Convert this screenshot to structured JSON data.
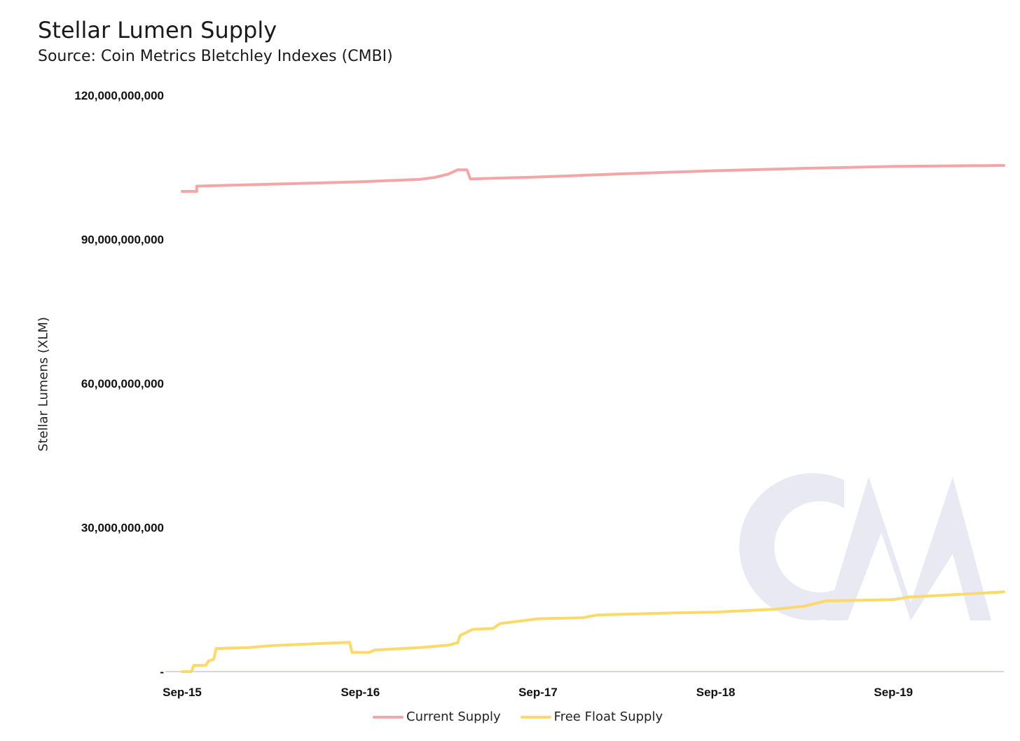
{
  "colors": {
    "current_supply": "#f4a6a6",
    "free_float_supply": "#fbd96a",
    "axis": "#c9c9dc",
    "watermark": "#e8e9f3"
  },
  "watermark": {
    "text": "CM"
  },
  "chart_data": {
    "type": "line",
    "title": "Stellar Lumen Supply",
    "subtitle": "Source: Coin Metrics Bletchley Indexes (CMBI)",
    "xlabel": "",
    "ylabel": "Stellar Lumens (XLM)",
    "ylim": [
      0,
      120000000000
    ],
    "xlim": [
      "2015-09-01",
      "2020-04-15"
    ],
    "y_ticks": [
      {
        "value": 0,
        "label": "-"
      },
      {
        "value": 30000000000,
        "label": "30,000,000,000"
      },
      {
        "value": 60000000000,
        "label": "60,000,000,000"
      },
      {
        "value": 90000000000,
        "label": "90,000,000,000"
      },
      {
        "value": 120000000000,
        "label": "120,000,000,000"
      }
    ],
    "x_ticks": [
      {
        "value": "2015-09-01",
        "label": "Sep-15"
      },
      {
        "value": "2016-09-01",
        "label": "Sep-16"
      },
      {
        "value": "2017-09-01",
        "label": "Sep-17"
      },
      {
        "value": "2018-09-01",
        "label": "Sep-18"
      },
      {
        "value": "2019-09-01",
        "label": "Sep-19"
      }
    ],
    "grid": false,
    "legend": "bottom",
    "series": [
      {
        "name": "Current Supply",
        "color": "#f4a6a6",
        "points": [
          [
            "2015-09-01",
            100000000000
          ],
          [
            "2015-10-01",
            100000000000
          ],
          [
            "2015-10-01",
            101100000000
          ],
          [
            "2016-03-01",
            101500000000
          ],
          [
            "2016-09-01",
            102000000000
          ],
          [
            "2017-01-01",
            102500000000
          ],
          [
            "2017-02-01",
            102900000000
          ],
          [
            "2017-03-01",
            103600000000
          ],
          [
            "2017-03-20",
            104500000000
          ],
          [
            "2017-04-08",
            104500000000
          ],
          [
            "2017-04-15",
            102600000000
          ],
          [
            "2017-09-01",
            103000000000
          ],
          [
            "2018-03-01",
            103700000000
          ],
          [
            "2018-09-01",
            104300000000
          ],
          [
            "2019-03-01",
            104800000000
          ],
          [
            "2019-09-01",
            105200000000
          ],
          [
            "2020-04-15",
            105400000000
          ]
        ]
      },
      {
        "name": "Free Float Supply",
        "color": "#fbd96a",
        "points": [
          [
            "2015-09-01",
            0
          ],
          [
            "2015-09-20",
            0
          ],
          [
            "2015-09-25",
            1300000000
          ],
          [
            "2015-10-20",
            1300000000
          ],
          [
            "2015-10-25",
            2200000000
          ],
          [
            "2015-11-05",
            2600000000
          ],
          [
            "2015-11-10",
            4800000000
          ],
          [
            "2016-01-15",
            5000000000
          ],
          [
            "2016-03-01",
            5400000000
          ],
          [
            "2016-06-01",
            5800000000
          ],
          [
            "2016-08-10",
            6100000000
          ],
          [
            "2016-08-15",
            4000000000
          ],
          [
            "2016-09-20",
            4000000000
          ],
          [
            "2016-10-01",
            4500000000
          ],
          [
            "2017-01-01",
            5000000000
          ],
          [
            "2017-03-01",
            5500000000
          ],
          [
            "2017-03-20",
            6000000000
          ],
          [
            "2017-03-25",
            7500000000
          ],
          [
            "2017-04-20",
            8800000000
          ],
          [
            "2017-06-01",
            9000000000
          ],
          [
            "2017-06-15",
            10000000000
          ],
          [
            "2017-08-01",
            10600000000
          ],
          [
            "2017-09-01",
            11000000000
          ],
          [
            "2017-12-01",
            11200000000
          ],
          [
            "2018-01-01",
            11800000000
          ],
          [
            "2018-06-01",
            12200000000
          ],
          [
            "2018-09-01",
            12400000000
          ],
          [
            "2019-01-01",
            13000000000
          ],
          [
            "2019-03-01",
            13600000000
          ],
          [
            "2019-04-15",
            14700000000
          ],
          [
            "2019-09-01",
            15000000000
          ],
          [
            "2019-10-01",
            15500000000
          ],
          [
            "2020-01-01",
            16000000000
          ],
          [
            "2020-04-15",
            16600000000
          ]
        ]
      }
    ]
  }
}
